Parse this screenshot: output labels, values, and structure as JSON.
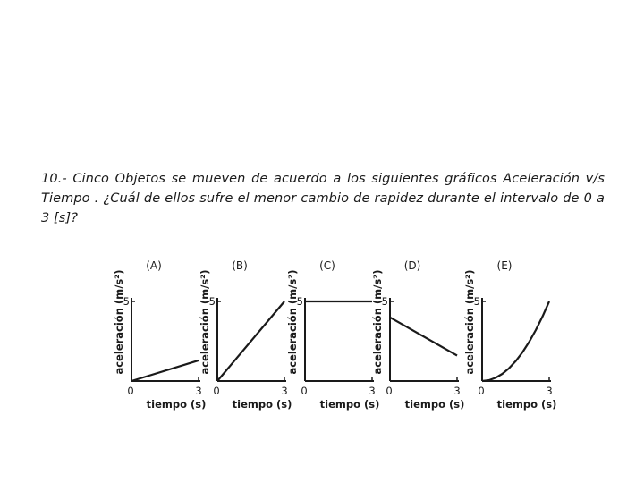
{
  "question": {
    "text": "10.- Cinco Objetos se mueven de acuerdo a los siguientes gráficos Aceleración v/s Tiempo . ¿Cuál de ellos sufre el menor cambio de rapidez durante el intervalo de 0 a 3 [s]?"
  },
  "chart_data": [
    {
      "type": "line",
      "title": "(A)",
      "xlabel": "tiempo (s)",
      "ylabel": "aceleración (m/s²)",
      "x": [
        0,
        3
      ],
      "y": [
        0,
        1.3
      ],
      "xlim": [
        0,
        3
      ],
      "ylim": [
        0,
        5
      ],
      "x_ticks": [
        "0",
        "3"
      ],
      "y_ticks": [
        "5"
      ]
    },
    {
      "type": "line",
      "title": "(B)",
      "xlabel": "tiempo (s)",
      "ylabel": "aceleración (m/s²)",
      "x": [
        0,
        3
      ],
      "y": [
        0,
        5
      ],
      "xlim": [
        0,
        3
      ],
      "ylim": [
        0,
        5
      ],
      "x_ticks": [
        "0",
        "3"
      ],
      "y_ticks": [
        "5"
      ]
    },
    {
      "type": "line",
      "title": "(C)",
      "xlabel": "tiempo (s)",
      "ylabel": "aceleración (m/s²)",
      "x": [
        0,
        3
      ],
      "y": [
        5,
        5
      ],
      "xlim": [
        0,
        3
      ],
      "ylim": [
        0,
        5
      ],
      "x_ticks": [
        "0",
        "3"
      ],
      "y_ticks": [
        "5"
      ]
    },
    {
      "type": "line",
      "title": "(D)",
      "xlabel": "tiempo (s)",
      "ylabel": "aceleración (m/s²)",
      "x": [
        0,
        3
      ],
      "y": [
        4,
        1.6
      ],
      "xlim": [
        0,
        3
      ],
      "ylim": [
        0,
        5
      ],
      "x_ticks": [
        "0",
        "3"
      ],
      "y_ticks": [
        "5"
      ]
    },
    {
      "type": "line",
      "title": "(E)",
      "xlabel": "tiempo (s)",
      "ylabel": "aceleración (m/s²)",
      "x": [
        0,
        0.3,
        0.6,
        0.9,
        1.2,
        1.5,
        1.8,
        2.1,
        2.4,
        2.7,
        3.0
      ],
      "y": [
        0,
        0.05,
        0.2,
        0.45,
        0.8,
        1.25,
        1.8,
        2.45,
        3.2,
        4.05,
        5.0
      ],
      "xlim": [
        0,
        3
      ],
      "ylim": [
        0,
        5
      ],
      "x_ticks": [
        "0",
        "3"
      ],
      "y_ticks": [
        "5"
      ]
    }
  ]
}
